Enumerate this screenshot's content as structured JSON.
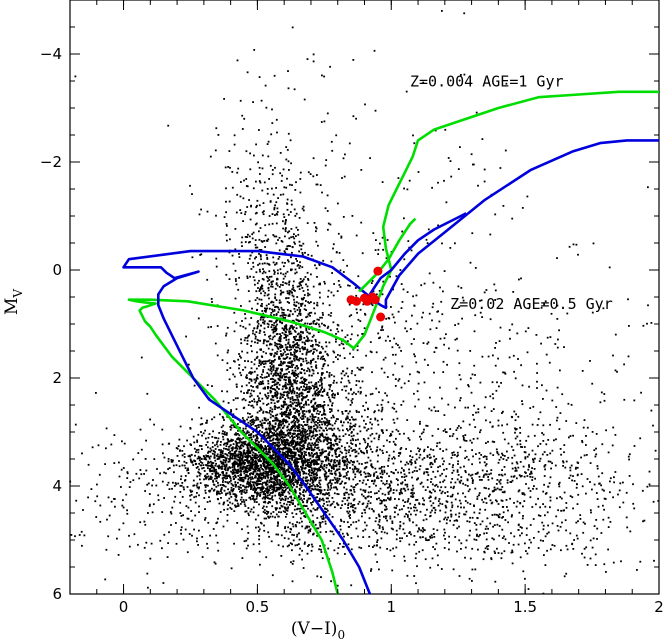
{
  "chart_data": {
    "type": "scatter",
    "title": "",
    "xlabel": "(V−I)",
    "xlabel_sub": "0",
    "ylabel": "M",
    "ylabel_sub": "V",
    "xlim": [
      -0.2,
      2.0
    ],
    "ylim": [
      6,
      -5
    ],
    "y_inverted": true,
    "xticks": [
      0,
      0.5,
      1,
      1.5,
      2
    ],
    "xtick_labels": [
      "0",
      "0.5",
      "1",
      "1.5",
      "2"
    ],
    "yticks": [
      -4,
      -2,
      0,
      2,
      4,
      6
    ],
    "ytick_labels": [
      "−4",
      "−2",
      "0",
      "2",
      "4",
      "6"
    ],
    "grid": false,
    "colors": {
      "field": "#000000",
      "iso_old": "#00dd00",
      "iso_young": "#0000dd",
      "highlight": "#ee0000"
    },
    "annotations": [
      {
        "text": "Z=0.004  AGE=1  Gyr",
        "x": 1.07,
        "y": -3.4
      },
      {
        "text": "Z=0.02  AGE=0.5  Gyr",
        "x": 1.22,
        "y": 0.72
      }
    ],
    "series": [
      {
        "kind": "isochrone",
        "color": "#00dd00",
        "x": [
          0.8,
          0.78,
          0.74,
          0.68,
          0.62,
          0.56,
          0.5,
          0.44,
          0.39,
          0.34,
          0.3,
          0.26,
          0.22,
          0.18,
          0.15,
          0.12,
          0.1,
          0.08,
          0.07,
          0.06,
          0.07,
          0.09,
          0.12,
          0.08,
          0.05,
          0.02,
          0.1,
          0.24,
          0.45,
          0.62,
          0.75,
          0.82,
          0.86,
          0.9,
          0.92,
          0.94,
          0.97,
          1.0,
          0.98,
          0.97,
          0.99,
          1.02,
          1.05,
          1.08,
          1.1,
          1.16,
          1.25,
          1.4,
          1.55,
          1.7,
          1.85,
          2.0
        ],
        "y": [
          6.0,
          5.6,
          5.0,
          4.5,
          4.0,
          3.6,
          3.3,
          3.0,
          2.7,
          2.4,
          2.2,
          2.0,
          1.8,
          1.6,
          1.4,
          1.2,
          1.05,
          0.95,
          0.85,
          0.75,
          0.7,
          0.67,
          0.62,
          0.6,
          0.58,
          0.55,
          0.55,
          0.58,
          0.75,
          0.95,
          1.15,
          1.3,
          1.45,
          1.2,
          0.95,
          0.7,
          0.3,
          0.0,
          -0.4,
          -0.8,
          -1.2,
          -1.5,
          -1.8,
          -2.1,
          -2.4,
          -2.6,
          -2.75,
          -3.0,
          -3.2,
          -3.25,
          -3.3,
          -3.3
        ]
      },
      {
        "kind": "isochrone",
        "color": "#0000dd",
        "x": [
          0.92,
          0.88,
          0.82,
          0.75,
          0.68,
          0.62,
          0.56,
          0.5,
          0.44,
          0.38,
          0.32,
          0.26,
          0.22,
          0.18,
          0.15,
          0.13,
          0.13,
          0.15,
          0.2,
          0.28,
          0.19,
          0.16,
          0.14,
          0.05,
          0.0,
          0.02,
          0.25,
          0.5,
          0.67,
          0.78,
          0.86,
          0.92,
          0.96,
          0.98,
          0.98,
          1.03,
          1.1,
          1.2,
          1.35,
          1.52,
          1.68,
          1.78,
          1.88,
          2.0
        ],
        "y": [
          6.0,
          5.5,
          5.0,
          4.5,
          4.0,
          3.6,
          3.3,
          3.0,
          2.8,
          2.6,
          2.4,
          2.0,
          1.6,
          1.2,
          0.9,
          0.65,
          0.45,
          0.3,
          0.15,
          0.03,
          0.15,
          0.05,
          -0.05,
          -0.05,
          -0.05,
          -0.2,
          -0.35,
          -0.35,
          -0.25,
          -0.05,
          0.25,
          0.5,
          0.65,
          0.7,
          0.55,
          0.1,
          -0.3,
          -0.7,
          -1.3,
          -1.85,
          -2.2,
          -2.35,
          -2.4,
          -2.4
        ]
      },
      {
        "kind": "isochrone",
        "color": "#0000dd",
        "x": [
          0.92,
          0.94,
          0.96,
          1.0,
          1.05,
          1.1,
          1.16,
          1.22,
          1.26,
          1.28
        ],
        "y": [
          0.45,
          0.3,
          0.15,
          0.0,
          -0.3,
          -0.55,
          -0.75,
          -0.9,
          -1.0,
          -1.05
        ]
      },
      {
        "kind": "isochrone",
        "color": "#00dd00",
        "x": [
          0.88,
          0.9,
          0.92,
          0.95,
          0.99,
          1.03,
          1.07,
          1.09
        ],
        "y": [
          0.4,
          0.3,
          0.2,
          0.05,
          -0.2,
          -0.55,
          -0.85,
          -0.95
        ]
      },
      {
        "kind": "highlighted_stars",
        "color": "#ee0000",
        "x": [
          0.85,
          0.87,
          0.9,
          0.91,
          0.93,
          0.95,
          0.94,
          0.96
        ],
        "y": [
          0.55,
          0.58,
          0.52,
          0.58,
          0.5,
          0.02,
          0.55,
          0.87
        ]
      }
    ],
    "field_stars_note": "",
    "field_groups": [
      {
        "cx": 0.5,
        "cy": 3.6,
        "sx": 0.12,
        "sy": 0.35,
        "n": 1700
      },
      {
        "cx": 0.62,
        "cy": 2.6,
        "sx": 0.1,
        "sy": 0.9,
        "n": 1500
      },
      {
        "cx": 0.74,
        "cy": 3.3,
        "sx": 0.11,
        "sy": 0.6,
        "n": 600
      },
      {
        "cx": 0.6,
        "cy": 1.0,
        "sx": 0.07,
        "sy": 0.7,
        "n": 500
      },
      {
        "cx": 0.55,
        "cy": -0.6,
        "sx": 0.1,
        "sy": 1.1,
        "n": 350
      },
      {
        "cx": 0.75,
        "cy": 4.1,
        "sx": 0.45,
        "sy": 0.7,
        "n": 1400
      },
      {
        "cx": 1.35,
        "cy": 4.1,
        "sx": 0.35,
        "sy": 0.75,
        "n": 800
      },
      {
        "cx": 1.2,
        "cy": 2.2,
        "sx": 0.4,
        "sy": 1.2,
        "n": 400
      },
      {
        "cx": 0.9,
        "cy": 0.9,
        "sx": 0.25,
        "sy": 0.9,
        "n": 250
      },
      {
        "cx": 0.9,
        "cy": -1.5,
        "sx": 0.35,
        "sy": 1.3,
        "n": 150
      }
    ],
    "field_count": 7650
  }
}
